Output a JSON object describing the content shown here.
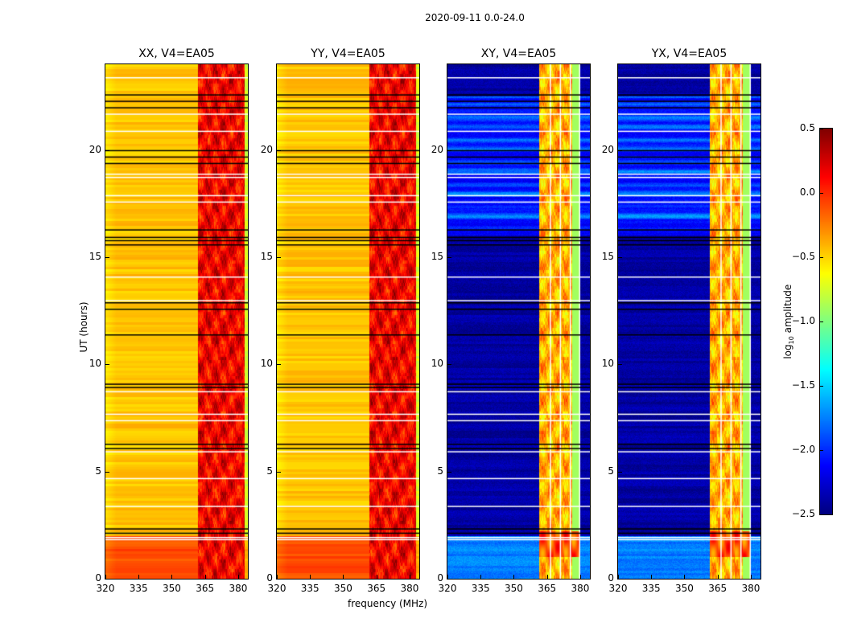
{
  "chart_data": {
    "type": "heatmap",
    "title": "2020-09-11 0.0-24.0",
    "xlabel": "frequency (MHz)",
    "ylabel": "UT (hours)",
    "xlim": [
      320,
      384.4
    ],
    "ylim": [
      0,
      24
    ],
    "xticks": [
      "320",
      "335",
      "350",
      "365",
      "380"
    ],
    "xtick_values": [
      320,
      335,
      350,
      365,
      380
    ],
    "yticks": [
      "0",
      "5",
      "10",
      "15",
      "20"
    ],
    "ytick_values": [
      0,
      5,
      10,
      15,
      20
    ],
    "colormap": "jet",
    "colorbar": {
      "label": "log10 amplitude",
      "label_main": "log",
      "label_sub": "10",
      "label_rest": " amplitude",
      "range": [
        -2.5,
        0.5
      ],
      "ticks": [
        "0.5",
        "0.0",
        "−0.5",
        "−1.0",
        "−1.5",
        "−2.0",
        "−2.5"
      ],
      "tick_values": [
        0.5,
        0.0,
        -0.5,
        -1.0,
        -1.5,
        -2.0,
        -2.5
      ]
    },
    "panels": [
      {
        "title": "XX, V4=EA05",
        "base": -0.45,
        "low_ut_base": -0.1,
        "band": [
          362,
          383
        ],
        "band_level": 0.15
      },
      {
        "title": "YY, V4=EA05",
        "base": -0.45,
        "low_ut_base": -0.1,
        "band": [
          362,
          383
        ],
        "band_level": 0.15
      },
      {
        "title": "XY, V4=EA05",
        "base": -2.4,
        "low_ut_base": -1.75,
        "band": [
          361.5,
          380
        ],
        "band_level": -0.4
      },
      {
        "title": "YX, V4=EA05",
        "base": -2.4,
        "low_ut_base": -1.75,
        "band": [
          361.5,
          380
        ],
        "band_level": -0.4
      }
    ],
    "flagged_black_ut": [
      22.6,
      22.3,
      22.0,
      20.0,
      19.7,
      19.4,
      16.3,
      15.95,
      15.8,
      15.6,
      12.9,
      12.6,
      11.4,
      9.1,
      8.95,
      6.3,
      6.1,
      2.35,
      2.15
    ],
    "flagged_white_ut": [
      23.4,
      21.7,
      20.9,
      18.9,
      18.75,
      17.9,
      17.6,
      14.1,
      13.0,
      8.75,
      7.7,
      7.4,
      5.95,
      4.7,
      3.4,
      1.95,
      1.85
    ]
  }
}
